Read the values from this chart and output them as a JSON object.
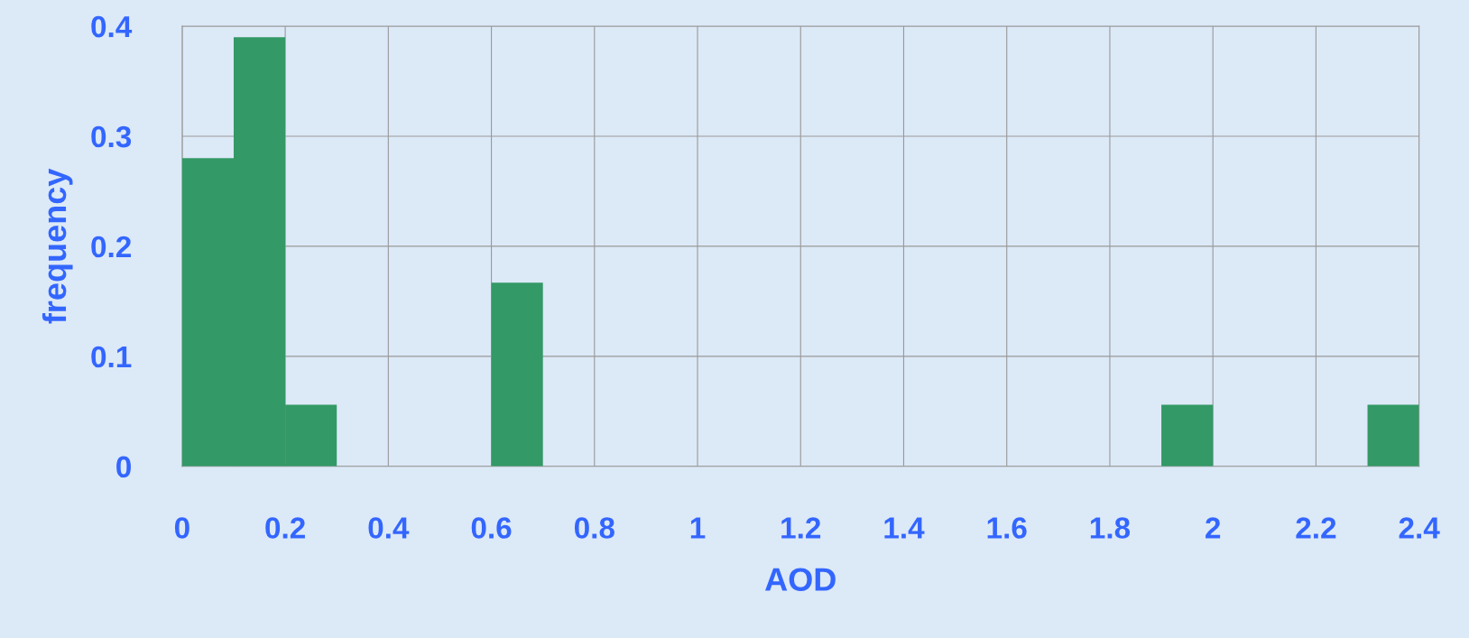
{
  "chart_data": {
    "type": "histogram",
    "xlabel": "AOD",
    "ylabel": "frequency",
    "bins": [
      0,
      0.1,
      0.2,
      0.3,
      0.4,
      0.5,
      0.6,
      0.7,
      0.8,
      0.9,
      1.0,
      1.1,
      1.2,
      1.3,
      1.4,
      1.5,
      1.6,
      1.7,
      1.8,
      1.9,
      2.0,
      2.1,
      2.2,
      2.3,
      2.4
    ],
    "values": [
      0.28,
      0.39,
      0.056,
      0,
      0,
      0,
      0.167,
      0,
      0,
      0,
      0,
      0,
      0,
      0,
      0,
      0,
      0,
      0,
      0,
      0.056,
      0,
      0,
      0,
      0.056
    ],
    "color": "#339966",
    "xlim": [
      0,
      2.4
    ],
    "ylim": [
      0,
      0.4
    ],
    "xticks": [
      0,
      0.2,
      0.4,
      0.6,
      0.8,
      1,
      1.2,
      1.4,
      1.6,
      1.8,
      2,
      2.2,
      2.4
    ],
    "yticks": [
      0,
      0.1,
      0.2,
      0.3,
      0.4
    ],
    "grid": true
  }
}
